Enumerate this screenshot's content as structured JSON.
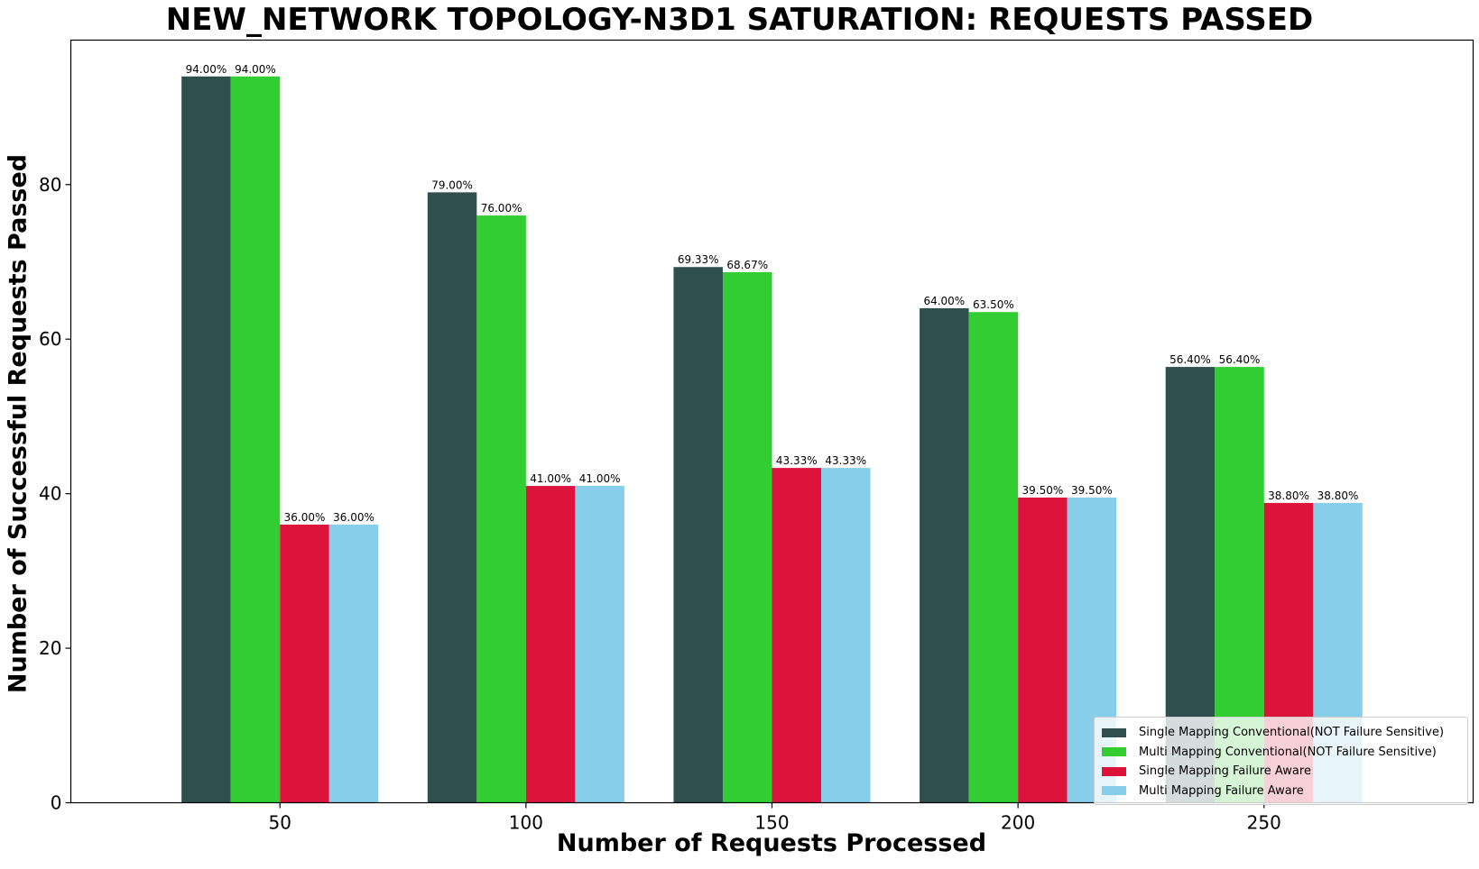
{
  "chart_data": {
    "type": "bar",
    "title": "NEW_NETWORK TOPOLOGY-N3D1 SATURATION: REQUESTS PASSED",
    "xlabel": "Number of Requests Processed",
    "ylabel": "Number of Successful Requests Passed",
    "categories": [
      "50",
      "100",
      "150",
      "200",
      "250"
    ],
    "ylim": [
      0,
      98.7
    ],
    "yticks": [
      0,
      20,
      40,
      60,
      80
    ],
    "grid": false,
    "legend_position": "bottom-right",
    "series": [
      {
        "name": "Single Mapping Conventional(NOT Failure Sensitive)",
        "color": "#2f4f4f",
        "values": [
          94.0,
          79.0,
          69.33,
          64.0,
          56.4
        ],
        "labels": [
          "94.00%",
          "79.00%",
          "69.33%",
          "64.00%",
          "56.40%"
        ]
      },
      {
        "name": "Multi Mapping Conventional(NOT Failure Sensitive)",
        "color": "#32cd32",
        "values": [
          94.0,
          76.0,
          68.67,
          63.5,
          56.4
        ],
        "labels": [
          "94.00%",
          "76.00%",
          "68.67%",
          "63.50%",
          "56.40%"
        ]
      },
      {
        "name": "Single Mapping Failure Aware",
        "color": "#dc143c",
        "values": [
          36.0,
          41.0,
          43.33,
          39.5,
          38.8
        ],
        "labels": [
          "36.00%",
          "41.00%",
          "43.33%",
          "39.50%",
          "38.80%"
        ]
      },
      {
        "name": "Multi Mapping Failure Aware",
        "color": "#87ceeb",
        "values": [
          36.0,
          41.0,
          43.33,
          39.5,
          38.8
        ],
        "labels": [
          "36.00%",
          "41.00%",
          "43.33%",
          "39.50%",
          "38.80%"
        ]
      }
    ]
  }
}
